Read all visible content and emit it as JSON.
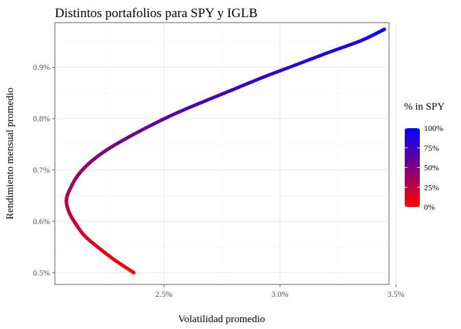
{
  "chart_data": {
    "type": "scatter",
    "title": "Distintos portafolios para SPY y IGLB",
    "xlabel": "Volatilidad promedio",
    "ylabel": "Rendimiento mensual promedio",
    "xlim": [
      2.03,
      3.47
    ],
    "ylim": [
      0.477,
      0.987
    ],
    "x_ticks": [
      2.5,
      3.0,
      3.5
    ],
    "x_tick_labels": [
      "2.5%",
      "3.0%",
      "3.5%"
    ],
    "y_ticks": [
      0.5,
      0.6,
      0.7,
      0.8,
      0.9
    ],
    "y_tick_labels": [
      "0.5%",
      "0.6%",
      "0.7%",
      "0.8%",
      "0.9%"
    ],
    "grid": true,
    "color_legend": {
      "title": "% in SPY",
      "position": "right",
      "breaks": [
        0,
        25,
        50,
        75,
        100
      ],
      "labels": [
        "0%",
        "25%",
        "50%",
        "75%",
        "100%"
      ],
      "low_color": "#ff0000",
      "high_color": "#0000ff"
    },
    "series": [
      {
        "color_variable": "% in SPY",
        "points": [
          {
            "w": 0,
            "x": 2.37,
            "y": 0.5
          },
          {
            "w": 5,
            "x": 2.29,
            "y": 0.524
          },
          {
            "w": 10,
            "x": 2.22,
            "y": 0.548
          },
          {
            "w": 15,
            "x": 2.16,
            "y": 0.571
          },
          {
            "w": 20,
            "x": 2.12,
            "y": 0.595
          },
          {
            "w": 25,
            "x": 2.09,
            "y": 0.619
          },
          {
            "w": 30,
            "x": 2.08,
            "y": 0.643
          },
          {
            "w": 35,
            "x": 2.1,
            "y": 0.667
          },
          {
            "w": 40,
            "x": 2.13,
            "y": 0.69
          },
          {
            "w": 45,
            "x": 2.18,
            "y": 0.714
          },
          {
            "w": 50,
            "x": 2.25,
            "y": 0.738
          },
          {
            "w": 55,
            "x": 2.34,
            "y": 0.762
          },
          {
            "w": 60,
            "x": 2.44,
            "y": 0.786
          },
          {
            "w": 65,
            "x": 2.55,
            "y": 0.81
          },
          {
            "w": 70,
            "x": 2.67,
            "y": 0.833
          },
          {
            "w": 75,
            "x": 2.8,
            "y": 0.857
          },
          {
            "w": 80,
            "x": 2.93,
            "y": 0.881
          },
          {
            "w": 85,
            "x": 3.07,
            "y": 0.905
          },
          {
            "w": 90,
            "x": 3.21,
            "y": 0.929
          },
          {
            "w": 95,
            "x": 3.35,
            "y": 0.952
          },
          {
            "w": 100,
            "x": 3.45,
            "y": 0.974
          }
        ]
      }
    ]
  }
}
